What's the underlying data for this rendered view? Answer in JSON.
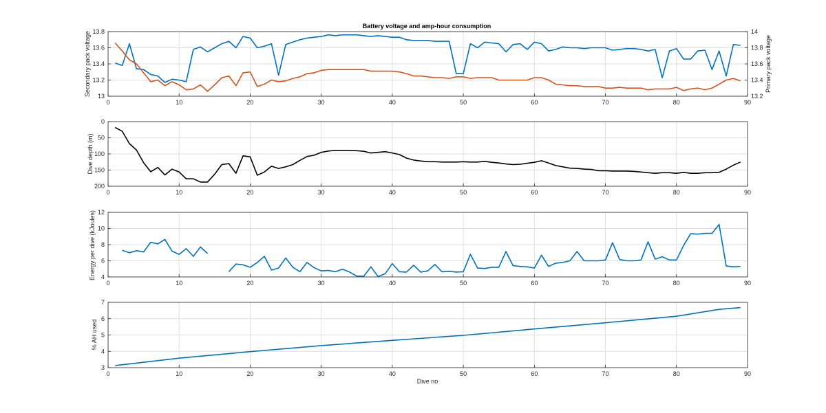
{
  "colors": {
    "secondary": "#0072BD",
    "primary": "#D95319",
    "depth": "#000000",
    "energy": "#0072BD",
    "ah": "#0072BD"
  },
  "chart_data": [
    {
      "type": "line",
      "title": "Battery voltage and amp-hour consumption",
      "ylabel": "Secondary pack voltage",
      "y2label": "Primary pack voltage",
      "xlim": [
        0,
        90
      ],
      "ylim": [
        13,
        13.8
      ],
      "y2lim": [
        13.2,
        14
      ],
      "xticks": [
        "0",
        "10",
        "20",
        "30",
        "40",
        "50",
        "60",
        "70",
        "80",
        "90"
      ],
      "yticks": [
        "13",
        "13.2",
        "13.4",
        "13.6",
        "13.8"
      ],
      "y2ticks": [
        "13.2",
        "13.4",
        "13.6",
        "13.8",
        "14"
      ],
      "grid": true,
      "x": [
        1,
        2,
        3,
        4,
        5,
        6,
        7,
        8,
        9,
        10,
        11,
        12,
        13,
        14,
        15,
        16,
        17,
        18,
        19,
        20,
        21,
        22,
        23,
        24,
        25,
        26,
        27,
        28,
        29,
        30,
        31,
        32,
        33,
        34,
        35,
        36,
        37,
        38,
        39,
        40,
        41,
        42,
        43,
        44,
        45,
        46,
        47,
        48,
        49,
        50,
        51,
        52,
        53,
        54,
        55,
        56,
        57,
        58,
        59,
        60,
        61,
        62,
        63,
        64,
        65,
        66,
        67,
        68,
        69,
        70,
        71,
        72,
        73,
        74,
        75,
        76,
        77,
        78,
        79,
        80,
        81,
        82,
        83,
        84,
        85,
        86,
        87,
        88,
        89
      ],
      "series": [
        {
          "name": "Secondary pack voltage",
          "axis": "left",
          "values": [
            13.41,
            13.38,
            13.65,
            13.34,
            13.33,
            13.27,
            13.25,
            13.17,
            13.21,
            13.2,
            13.18,
            13.58,
            13.61,
            13.55,
            13.6,
            13.65,
            13.68,
            13.6,
            13.74,
            13.72,
            13.6,
            13.62,
            13.65,
            13.26,
            13.64,
            13.67,
            13.7,
            13.72,
            13.73,
            13.74,
            13.76,
            13.75,
            13.76,
            13.76,
            13.76,
            13.75,
            13.74,
            13.75,
            13.74,
            13.73,
            13.73,
            13.7,
            13.69,
            13.69,
            13.69,
            13.68,
            13.68,
            13.68,
            13.28,
            13.28,
            13.65,
            13.6,
            13.67,
            13.66,
            13.65,
            13.55,
            13.64,
            13.65,
            13.58,
            13.67,
            13.65,
            13.56,
            13.58,
            13.61,
            13.6,
            13.6,
            13.59,
            13.6,
            13.6,
            13.6,
            13.57,
            13.58,
            13.59,
            13.59,
            13.58,
            13.56,
            13.58,
            13.23,
            13.56,
            13.59,
            13.46,
            13.46,
            13.56,
            13.57,
            13.33,
            13.56,
            13.25,
            13.64,
            13.63
          ]
        },
        {
          "name": "Primary pack voltage",
          "axis": "right",
          "values": [
            13.86,
            13.76,
            13.65,
            13.6,
            13.49,
            13.38,
            13.4,
            13.33,
            13.38,
            13.34,
            13.28,
            13.29,
            13.34,
            13.26,
            13.34,
            13.43,
            13.45,
            13.33,
            13.49,
            13.5,
            13.32,
            13.35,
            13.4,
            13.38,
            13.39,
            13.42,
            13.44,
            13.48,
            13.49,
            13.52,
            13.53,
            13.53,
            13.53,
            13.53,
            13.53,
            13.53,
            13.51,
            13.51,
            13.51,
            13.51,
            13.5,
            13.48,
            13.45,
            13.45,
            13.44,
            13.43,
            13.43,
            13.42,
            13.44,
            13.44,
            13.42,
            13.43,
            13.43,
            13.43,
            13.4,
            13.4,
            13.4,
            13.4,
            13.4,
            13.43,
            13.43,
            13.4,
            13.35,
            13.34,
            13.33,
            13.33,
            13.32,
            13.32,
            13.32,
            13.3,
            13.3,
            13.31,
            13.3,
            13.3,
            13.3,
            13.28,
            13.29,
            13.29,
            13.29,
            13.31,
            13.27,
            13.29,
            13.3,
            13.28,
            13.3,
            13.35,
            13.4,
            13.42,
            13.39
          ]
        }
      ]
    },
    {
      "type": "line",
      "ylabel": "Dive depth (m)",
      "xlim": [
        0,
        90
      ],
      "ylim": [
        200,
        0
      ],
      "y_reversed": true,
      "xticks": [
        "0",
        "10",
        "20",
        "30",
        "40",
        "50",
        "60",
        "70",
        "80",
        "90"
      ],
      "yticks": [
        "0",
        "50",
        "100",
        "150",
        "200"
      ],
      "grid": true,
      "x": [
        1,
        2,
        3,
        4,
        5,
        6,
        7,
        8,
        9,
        10,
        11,
        12,
        13,
        14,
        15,
        16,
        17,
        18,
        19,
        20,
        21,
        22,
        23,
        24,
        25,
        26,
        27,
        28,
        29,
        30,
        31,
        32,
        33,
        34,
        35,
        36,
        37,
        38,
        39,
        40,
        41,
        42,
        43,
        44,
        45,
        46,
        47,
        48,
        49,
        50,
        51,
        52,
        53,
        54,
        55,
        56,
        57,
        58,
        59,
        60,
        61,
        62,
        63,
        64,
        65,
        66,
        67,
        68,
        69,
        70,
        71,
        72,
        73,
        74,
        75,
        76,
        77,
        78,
        79,
        80,
        81,
        82,
        83,
        84,
        85,
        86,
        87,
        88,
        89
      ],
      "series": [
        {
          "values": [
            18,
            30,
            68,
            88,
            127,
            155,
            142,
            165,
            147,
            156,
            177,
            177,
            187,
            187,
            163,
            133,
            130,
            160,
            106,
            109,
            166,
            156,
            138,
            145,
            140,
            133,
            120,
            108,
            104,
            95,
            91,
            89,
            89,
            89,
            90,
            92,
            97,
            95,
            93,
            97,
            102,
            113,
            119,
            122,
            124,
            124,
            125,
            125,
            125,
            124,
            125,
            125,
            123,
            126,
            128,
            131,
            133,
            132,
            129,
            126,
            121,
            128,
            136,
            140,
            144,
            145,
            147,
            148,
            152,
            152,
            153,
            153,
            153,
            154,
            156,
            158,
            160,
            158,
            158,
            160,
            157,
            160,
            160,
            158,
            158,
            157,
            147,
            135,
            125
          ]
        }
      ]
    },
    {
      "type": "line",
      "ylabel": "Energy per dive (kJoules)",
      "xlim": [
        0,
        90
      ],
      "ylim": [
        4,
        12
      ],
      "xticks": [
        "0",
        "10",
        "20",
        "30",
        "40",
        "50",
        "60",
        "70",
        "80",
        "90"
      ],
      "yticks": [
        "4",
        "6",
        "8",
        "10",
        "12"
      ],
      "grid": true,
      "x": [
        1,
        2,
        3,
        4,
        5,
        6,
        7,
        8,
        9,
        10,
        11,
        12,
        13,
        14,
        15,
        16,
        17,
        18,
        19,
        20,
        21,
        22,
        23,
        24,
        25,
        26,
        27,
        28,
        29,
        30,
        31,
        32,
        33,
        34,
        35,
        36,
        37,
        38,
        39,
        40,
        41,
        42,
        43,
        44,
        45,
        46,
        47,
        48,
        49,
        50,
        51,
        52,
        53,
        54,
        55,
        56,
        57,
        58,
        59,
        60,
        61,
        62,
        63,
        64,
        65,
        66,
        67,
        68,
        69,
        70,
        71,
        72,
        73,
        74,
        75,
        76,
        77,
        78,
        79,
        80,
        81,
        82,
        83,
        84,
        85,
        86,
        87,
        88,
        89
      ],
      "series": [
        {
          "values": [
            null,
            7.3,
            7.0,
            7.25,
            7.1,
            8.3,
            8.1,
            8.65,
            7.2,
            6.8,
            7.5,
            6.55,
            7.7,
            6.9,
            null,
            null,
            4.65,
            5.6,
            5.5,
            5.2,
            5.8,
            6.55,
            4.85,
            5.1,
            6.35,
            5.2,
            4.65,
            5.8,
            5.15,
            4.75,
            4.8,
            4.65,
            4.95,
            4.6,
            4.1,
            4.1,
            5.25,
            4.05,
            4.4,
            5.65,
            4.65,
            4.6,
            5.45,
            4.6,
            4.75,
            5.55,
            4.65,
            4.7,
            4.6,
            4.65,
            6.8,
            5.1,
            5.05,
            5.2,
            5.2,
            7.15,
            5.4,
            5.3,
            5.25,
            5.1,
            6.7,
            5.3,
            5.7,
            5.8,
            6.0,
            7.15,
            6.0,
            6.0,
            6.0,
            6.1,
            8.25,
            6.15,
            6.0,
            6.0,
            6.1,
            8.35,
            6.2,
            6.5,
            6.1,
            6.1,
            7.9,
            9.35,
            9.3,
            9.4,
            9.4,
            10.5,
            5.35,
            5.25,
            5.3
          ]
        }
      ]
    },
    {
      "type": "line",
      "ylabel": "% AH used",
      "xlabel": "Dive no",
      "xlim": [
        0,
        90
      ],
      "ylim": [
        3,
        7
      ],
      "xticks": [
        "0",
        "10",
        "20",
        "30",
        "40",
        "50",
        "60",
        "70",
        "80",
        "90"
      ],
      "yticks": [
        "3",
        "4",
        "5",
        "6",
        "7"
      ],
      "grid": true,
      "x": [
        1,
        10,
        20,
        30,
        40,
        50,
        60,
        70,
        80,
        86,
        89
      ],
      "series": [
        {
          "values": [
            3.13,
            3.58,
            3.98,
            4.35,
            4.67,
            4.98,
            5.37,
            5.75,
            6.15,
            6.57,
            6.68
          ]
        }
      ]
    }
  ]
}
